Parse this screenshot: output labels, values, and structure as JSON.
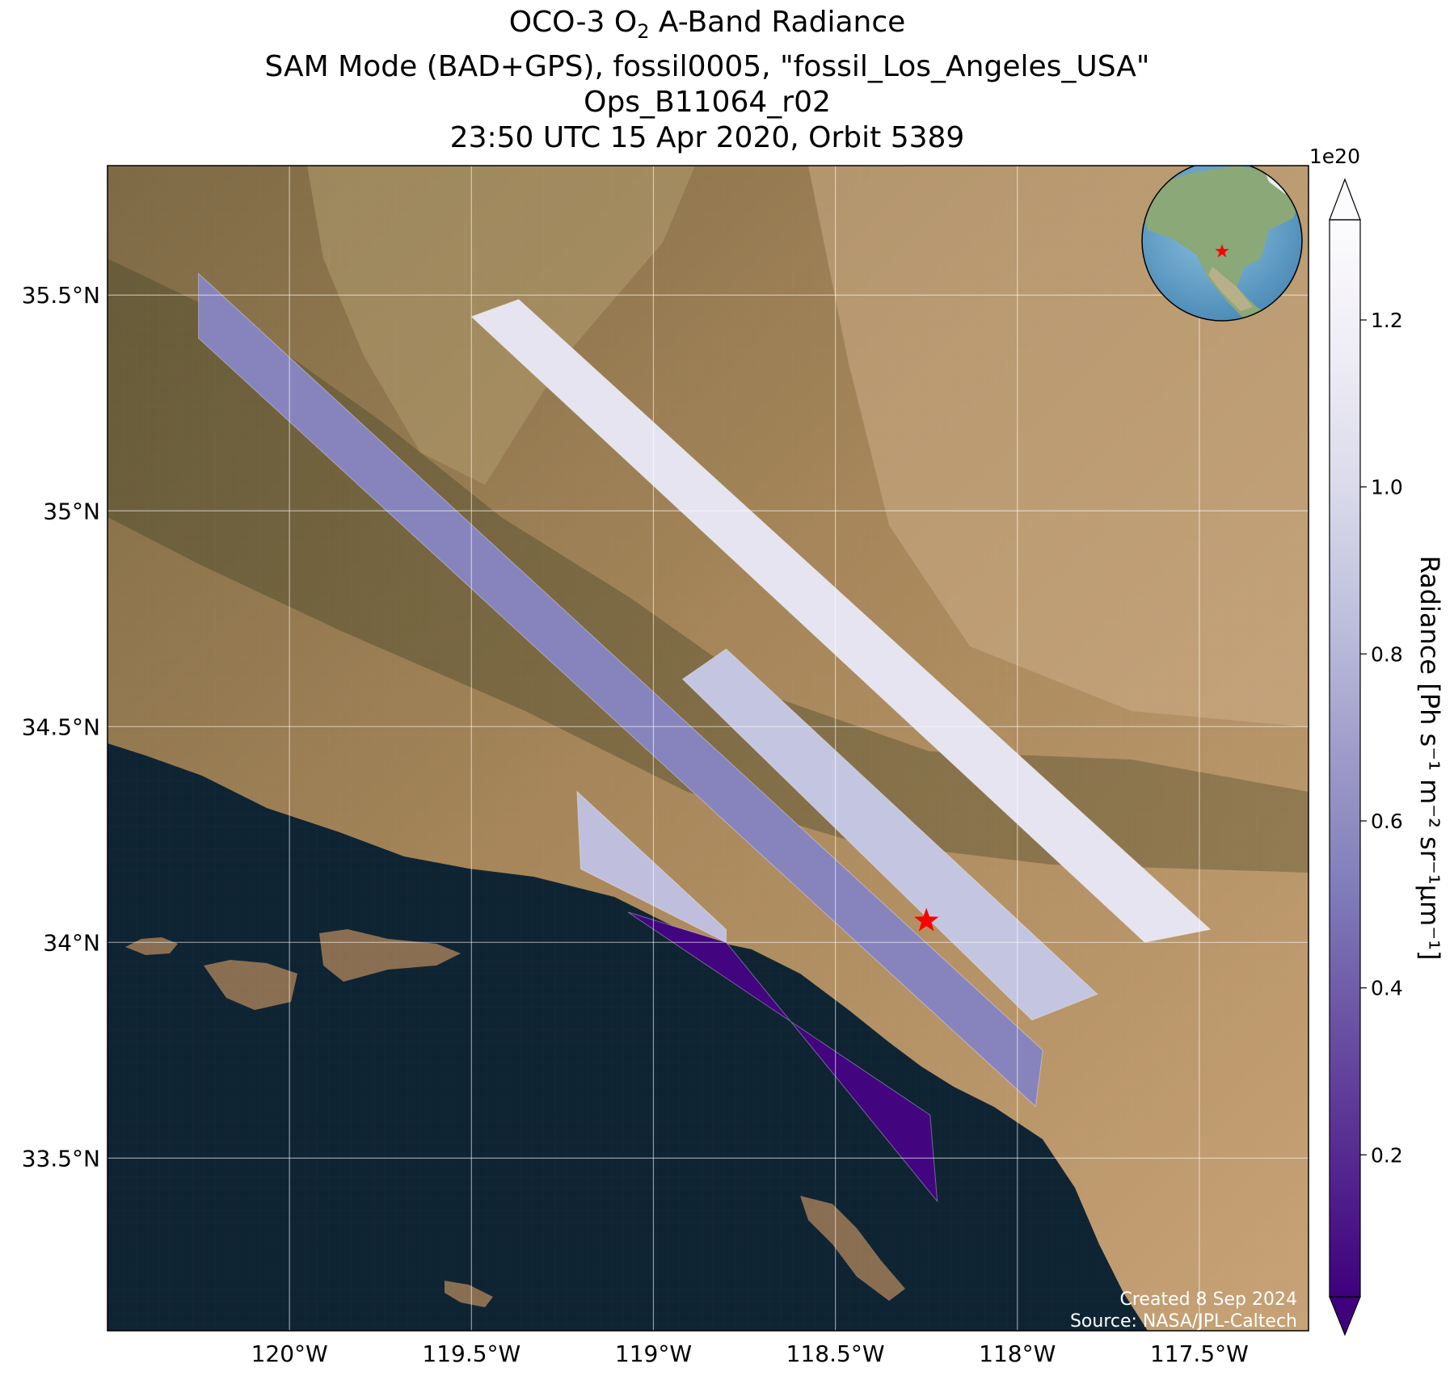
{
  "title": {
    "line1_prefix": "OCO-3 O",
    "line1_sub": "2",
    "line1_suffix": " A-Band Radiance",
    "line2": "SAM Mode (BAD+GPS), fossil0005, \"fossil_Los_Angeles_USA\"",
    "line3": "Ops_B11064_r02",
    "line4": "23:50 UTC 15 Apr 2020, Orbit 5389"
  },
  "map": {
    "lon_range": [
      -120.5,
      -117.2
    ],
    "lat_range": [
      33.1,
      35.8
    ],
    "lon_ticks": [
      {
        "value": -120.0,
        "label": "120°W"
      },
      {
        "value": -119.5,
        "label": "119.5°W"
      },
      {
        "value": -119.0,
        "label": "119°W"
      },
      {
        "value": -118.5,
        "label": "118.5°W"
      },
      {
        "value": -118.0,
        "label": "118°W"
      },
      {
        "value": -117.5,
        "label": "117.5°W"
      }
    ],
    "lat_ticks": [
      {
        "value": 35.5,
        "label": "35.5°N"
      },
      {
        "value": 35.0,
        "label": "35°N"
      },
      {
        "value": 34.5,
        "label": "34.5°N"
      },
      {
        "value": 34.0,
        "label": "34°N"
      },
      {
        "value": 33.5,
        "label": "33.5°N"
      }
    ],
    "target_marker": {
      "lon": -118.25,
      "lat": 34.05,
      "color": "#ff0000"
    },
    "colors": {
      "ocean": "#0f2433",
      "land": "#9b7b52",
      "grid": "#ffffff"
    }
  },
  "chart_data": {
    "type": "heatmap",
    "swaths": [
      {
        "corners": [
          [
            -120.25,
            35.55
          ],
          [
            -120.25,
            35.4
          ],
          [
            -117.95,
            33.62
          ],
          [
            -117.93,
            33.75
          ]
        ],
        "mean_radiance_1e20": 0.55
      },
      {
        "corners": [
          [
            -119.5,
            35.45
          ],
          [
            -119.37,
            35.49
          ],
          [
            -117.47,
            34.03
          ],
          [
            -117.65,
            34.0
          ]
        ],
        "mean_radiance_1e20": 1.08
      },
      {
        "corners": [
          [
            -118.92,
            34.61
          ],
          [
            -118.8,
            34.68
          ],
          [
            -117.78,
            33.88
          ],
          [
            -117.96,
            33.82
          ]
        ],
        "mean_radiance_1e20": 0.88
      },
      {
        "corners": [
          [
            -119.21,
            34.35
          ],
          [
            -119.2,
            34.17
          ],
          [
            -118.8,
            34.0
          ],
          [
            -118.8,
            34.03
          ]
        ],
        "mean_radiance_1e20": 0.85
      },
      {
        "corners": [
          [
            -119.07,
            34.07
          ],
          [
            -118.8,
            34.0
          ],
          [
            -118.22,
            33.4
          ],
          [
            -118.24,
            33.6
          ]
        ],
        "mean_radiance_1e20": 0.05
      }
    ],
    "colorbar": {
      "label": "Radiance [Ph s⁻¹ m⁻² sr⁻¹µm⁻¹]",
      "scale_label": "1e20",
      "range": [
        0.03,
        1.32
      ],
      "ticks": [
        {
          "value": 0.2,
          "label": "0.2"
        },
        {
          "value": 0.4,
          "label": "0.4"
        },
        {
          "value": 0.6,
          "label": "0.6"
        },
        {
          "value": 0.8,
          "label": "0.8"
        },
        {
          "value": 1.0,
          "label": "1.0"
        },
        {
          "value": 1.2,
          "label": "1.2"
        }
      ],
      "extend": "both",
      "colors": [
        "#3f007d",
        "#54278f",
        "#6a51a3",
        "#807dba",
        "#9e9ac8",
        "#bcbddc",
        "#dadaeb",
        "#efedf5",
        "#fcfbfd"
      ]
    }
  },
  "credit": {
    "created": "Created 8 Sep 2024",
    "source": "Source: NASA/JPL-Caltech"
  }
}
